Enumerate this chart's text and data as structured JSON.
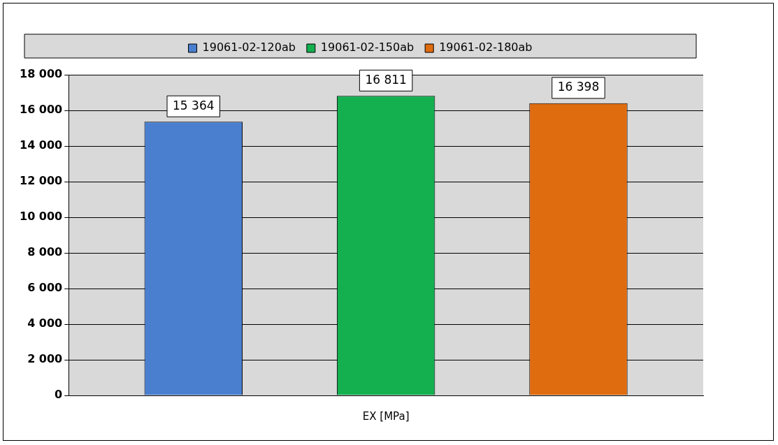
{
  "chart_data": {
    "type": "bar",
    "categories": [
      "EX [MPa]"
    ],
    "series": [
      {
        "name": "19061-02-120ab",
        "color": "#4a7fd0",
        "values": [
          15364
        ],
        "value_labels": [
          "15 364"
        ]
      },
      {
        "name": "19061-02-150ab",
        "color": "#14b050",
        "values": [
          16811
        ],
        "value_labels": [
          "16 811"
        ]
      },
      {
        "name": "19061-02-180ab",
        "color": "#e06c10",
        "values": [
          16398
        ],
        "value_labels": [
          "16 398"
        ]
      }
    ],
    "ylim": [
      0,
      18000
    ],
    "yticks": [
      {
        "value": 0,
        "label": "0"
      },
      {
        "value": 2000,
        "label": "2 000"
      },
      {
        "value": 4000,
        "label": "4 000"
      },
      {
        "value": 6000,
        "label": "6 000"
      },
      {
        "value": 8000,
        "label": "8 000"
      },
      {
        "value": 10000,
        "label": "10 000"
      },
      {
        "value": 12000,
        "label": "12 000"
      },
      {
        "value": 14000,
        "label": "14 000"
      },
      {
        "value": 16000,
        "label": "16 000"
      },
      {
        "value": 18000,
        "label": "18 000"
      }
    ],
    "grid": "y",
    "legend": "top"
  }
}
